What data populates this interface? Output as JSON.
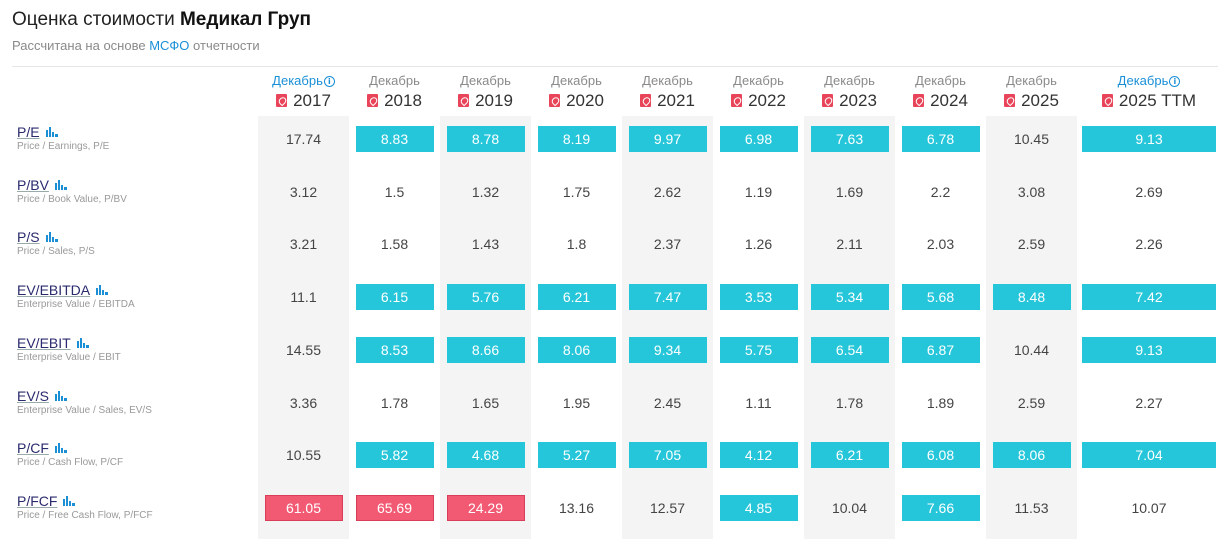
{
  "header": {
    "title_prefix": "Оценка стоимости",
    "title_company": "Медикал Груп",
    "subtitle_prefix": "Рассчитана на основе",
    "subtitle_link": "МСФО",
    "subtitle_suffix": "отчетности"
  },
  "columns": [
    {
      "month": "Декабрь",
      "year": "2017",
      "info": true
    },
    {
      "month": "Декабрь",
      "year": "2018",
      "info": false
    },
    {
      "month": "Декабрь",
      "year": "2019",
      "info": false
    },
    {
      "month": "Декабрь",
      "year": "2020",
      "info": false
    },
    {
      "month": "Декабрь",
      "year": "2021",
      "info": false
    },
    {
      "month": "Декабрь",
      "year": "2022",
      "info": false
    },
    {
      "month": "Декабрь",
      "year": "2023",
      "info": false
    },
    {
      "month": "Декабрь",
      "year": "2024",
      "info": false
    },
    {
      "month": "Декабрь",
      "year": "2025",
      "info": false
    },
    {
      "month": "Декабрь",
      "year": "2025 TTM",
      "info": true
    }
  ],
  "rows": [
    {
      "code": "P/E",
      "desc": "Price / Earnings, P/E",
      "values": [
        "17.74",
        "8.83",
        "8.78",
        "8.19",
        "9.97",
        "6.98",
        "7.63",
        "6.78",
        "10.45",
        "9.13"
      ],
      "status": [
        "",
        "good",
        "good",
        "good",
        "good",
        "good",
        "good",
        "good",
        "",
        "good"
      ]
    },
    {
      "code": "P/BV",
      "desc": "Price / Book Value, P/BV",
      "values": [
        "3.12",
        "1.5",
        "1.32",
        "1.75",
        "2.62",
        "1.19",
        "1.69",
        "2.2",
        "3.08",
        "2.69"
      ],
      "status": [
        "",
        "",
        "",
        "",
        "",
        "",
        "",
        "",
        "",
        ""
      ]
    },
    {
      "code": "P/S",
      "desc": "Price / Sales, P/S",
      "values": [
        "3.21",
        "1.58",
        "1.43",
        "1.8",
        "2.37",
        "1.26",
        "2.11",
        "2.03",
        "2.59",
        "2.26"
      ],
      "status": [
        "",
        "",
        "",
        "",
        "",
        "",
        "",
        "",
        "",
        ""
      ]
    },
    {
      "code": "EV/EBITDA",
      "desc": "Enterprise Value / EBITDA",
      "values": [
        "11.1",
        "6.15",
        "5.76",
        "6.21",
        "7.47",
        "3.53",
        "5.34",
        "5.68",
        "8.48",
        "7.42"
      ],
      "status": [
        "",
        "good",
        "good",
        "good",
        "good",
        "good",
        "good",
        "good",
        "good",
        "good"
      ]
    },
    {
      "code": "EV/EBIT",
      "desc": "Enterprise Value / EBIT",
      "values": [
        "14.55",
        "8.53",
        "8.66",
        "8.06",
        "9.34",
        "5.75",
        "6.54",
        "6.87",
        "10.44",
        "9.13"
      ],
      "status": [
        "",
        "good",
        "good",
        "good",
        "good",
        "good",
        "good",
        "good",
        "",
        "good"
      ]
    },
    {
      "code": "EV/S",
      "desc": "Enterprise Value / Sales, EV/S",
      "values": [
        "3.36",
        "1.78",
        "1.65",
        "1.95",
        "2.45",
        "1.11",
        "1.78",
        "1.89",
        "2.59",
        "2.27"
      ],
      "status": [
        "",
        "",
        "",
        "",
        "",
        "",
        "",
        "",
        "",
        ""
      ]
    },
    {
      "code": "P/CF",
      "desc": "Price / Cash Flow, P/CF",
      "values": [
        "10.55",
        "5.82",
        "4.68",
        "5.27",
        "7.05",
        "4.12",
        "6.21",
        "6.08",
        "8.06",
        "7.04"
      ],
      "status": [
        "",
        "good",
        "good",
        "good",
        "good",
        "good",
        "good",
        "good",
        "good",
        "good"
      ]
    },
    {
      "code": "P/FCF",
      "desc": "Price / Free Cash Flow, P/FCF",
      "values": [
        "61.05",
        "65.69",
        "24.29",
        "13.16",
        "12.57",
        "4.85",
        "10.04",
        "7.66",
        "11.53",
        "10.07"
      ],
      "status": [
        "bad",
        "bad",
        "bad",
        "",
        "",
        "good",
        "",
        "good",
        "",
        ""
      ]
    }
  ],
  "icons": {
    "pdf": "pdf-icon",
    "info": "info-icon",
    "chart": "bar-chart-icon"
  },
  "colors": {
    "good": "#26c6da",
    "bad": "#f25a74",
    "link": "#1a8fd6"
  }
}
